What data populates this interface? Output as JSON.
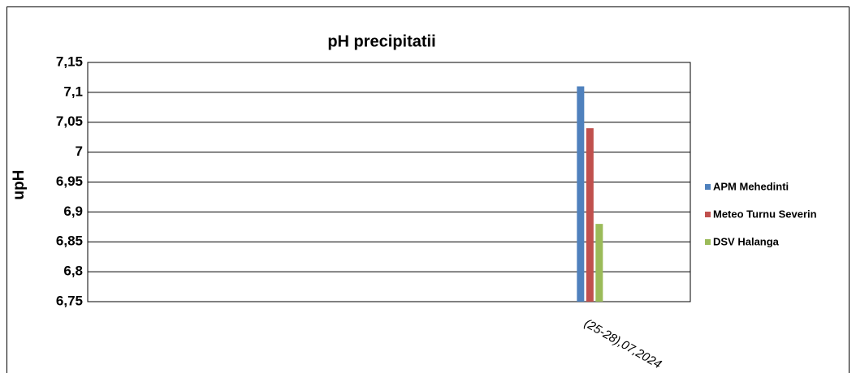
{
  "chart_data": {
    "type": "bar",
    "title": "pH precipitatii",
    "y_label": "upH",
    "categories": [
      null,
      null,
      "(25-28),07,2024"
    ],
    "series": [
      {
        "name": "APM Mehedinti",
        "color": "#4f81bd",
        "values": [
          null,
          null,
          7.11
        ]
      },
      {
        "name": "Meteo Turnu Severin",
        "color": "#c0504d",
        "values": [
          null,
          null,
          7.04
        ]
      },
      {
        "name": "DSV Halanga",
        "color": "#9bbb59",
        "values": [
          null,
          null,
          6.88
        ]
      }
    ],
    "ylim": [
      6.75,
      7.15
    ],
    "yticks": [
      {
        "value": 6.75,
        "label": "6,75"
      },
      {
        "value": 6.8,
        "label": "6,8"
      },
      {
        "value": 6.85,
        "label": "6,85"
      },
      {
        "value": 6.9,
        "label": "6,9"
      },
      {
        "value": 6.95,
        "label": "6,95"
      },
      7,
      {
        "value": 7.05,
        "label": "7,05"
      },
      {
        "value": 7.1,
        "label": "7,1"
      },
      {
        "value": 7.15,
        "label": "7,15"
      }
    ],
    "grid": true,
    "legend": "right"
  }
}
